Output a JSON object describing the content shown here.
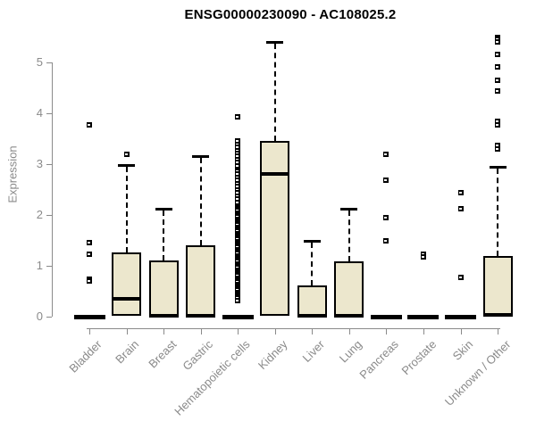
{
  "title": "ENSG00000230090 - AC108025.2",
  "chart_data": {
    "type": "boxplot",
    "title": "ENSG00000230090 - AC108025.2",
    "xlabel": "",
    "ylabel": "Expression",
    "ylim": [
      0,
      5.55
    ],
    "y_ticks": [
      0,
      1,
      2,
      3,
      4,
      5
    ],
    "grid": false,
    "box_fill_color": "#ece7cd",
    "box_border_color": "#000000",
    "axis_color": "#8a8a8a",
    "label_color": "#8a8a8a",
    "categories": [
      "Bladder",
      "Brain",
      "Breast",
      "Gastric",
      "Hematopoietic cells",
      "Kidney",
      "Liver",
      "Lung",
      "Pancreas",
      "Prostate",
      "Skin",
      "Unknown / Other"
    ],
    "series": [
      {
        "category": "Bladder",
        "q1": 0,
        "median": 0,
        "q3": 0,
        "whisker_low": 0,
        "whisker_high": 0,
        "outliers": [
          3.78,
          1.45,
          1.22,
          0.73,
          0.7
        ]
      },
      {
        "category": "Brain",
        "q1": 0.02,
        "median": 0.35,
        "q3": 1.27,
        "whisker_low": 0.02,
        "whisker_high": 2.98,
        "outliers": [
          3.2
        ]
      },
      {
        "category": "Breast",
        "q1": 0.02,
        "median": 0.02,
        "q3": 1.1,
        "whisker_low": 0.02,
        "whisker_high": 2.13,
        "outliers": []
      },
      {
        "category": "Gastric",
        "q1": 0.02,
        "median": 0.02,
        "q3": 1.4,
        "whisker_low": 0.02,
        "whisker_high": 3.15,
        "outliers": []
      },
      {
        "category": "Hematopoietic cells",
        "q1": 0,
        "median": 0,
        "q3": 0,
        "whisker_low": 0,
        "whisker_high": 0,
        "outliers": [
          3.93,
          3.45,
          3.39,
          3.33,
          3.27,
          3.21,
          3.15,
          3.09,
          3.03,
          2.97,
          2.86,
          2.8,
          2.74,
          2.68,
          2.62,
          2.56,
          2.5,
          2.44,
          2.37,
          2.31,
          2.25,
          2.16,
          2.12,
          2.08,
          2.04,
          2.0,
          1.96,
          1.92,
          1.88,
          1.84,
          1.8,
          1.76,
          1.72,
          1.68,
          1.64,
          1.6,
          1.56,
          1.52,
          1.48,
          1.44,
          1.4,
          1.36,
          1.32,
          1.28,
          1.24,
          1.2,
          1.16,
          1.12,
          1.08,
          1.04,
          1.0,
          0.96,
          0.92,
          0.88,
          0.84,
          0.8,
          0.76,
          0.72,
          0.68,
          0.64,
          0.6,
          0.56,
          0.52,
          0.48,
          0.44,
          0.4,
          0.36,
          0.32
        ]
      },
      {
        "category": "Kidney",
        "q1": 0.02,
        "median": 2.8,
        "q3": 3.45,
        "whisker_low": 0.02,
        "whisker_high": 5.4,
        "outliers": []
      },
      {
        "category": "Liver",
        "q1": 0.02,
        "median": 0.02,
        "q3": 0.62,
        "whisker_low": 0.02,
        "whisker_high": 1.5,
        "outliers": []
      },
      {
        "category": "Lung",
        "q1": 0.02,
        "median": 0.02,
        "q3": 1.08,
        "whisker_low": 0.02,
        "whisker_high": 2.13,
        "outliers": []
      },
      {
        "category": "Pancreas",
        "q1": 0,
        "median": 0,
        "q3": 0,
        "whisker_low": 0,
        "whisker_high": 0,
        "outliers": [
          3.2,
          2.68,
          1.95,
          1.5
        ]
      },
      {
        "category": "Prostate",
        "q1": 0,
        "median": 0,
        "q3": 0,
        "whisker_low": 0,
        "whisker_high": 0,
        "outliers": [
          1.22,
          1.18
        ]
      },
      {
        "category": "Skin",
        "q1": 0,
        "median": 0,
        "q3": 0,
        "whisker_low": 0,
        "whisker_high": 0,
        "outliers": [
          2.44,
          2.13,
          0.78
        ]
      },
      {
        "category": "Unknown / Other",
        "q1": 0.02,
        "median": 0.04,
        "q3": 1.2,
        "whisker_low": 0.02,
        "whisker_high": 2.95,
        "outliers": [
          5.5,
          5.45,
          5.4,
          5.15,
          4.92,
          4.65,
          4.43,
          3.85,
          3.78,
          3.36,
          3.3
        ]
      }
    ]
  }
}
